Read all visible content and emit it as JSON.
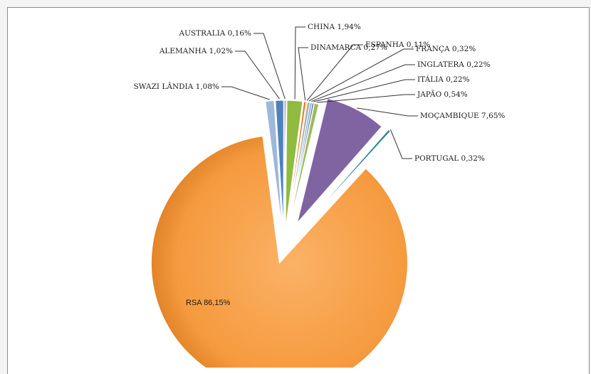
{
  "chart_data": {
    "type": "pie",
    "title": "",
    "unit": "%",
    "slices": [
      {
        "name": "SWAZI LÂNDIA",
        "value": 1.08,
        "label": "SWAZI LÂNDIA 1,08%",
        "color": "#9db8dc"
      },
      {
        "name": "ALEMANHA",
        "value": 1.02,
        "label": "ALEMANHA 1,02%",
        "color": "#4f81bd"
      },
      {
        "name": "AUSTRALIA",
        "value": 0.16,
        "label": "AUSTRALIA 0,16%",
        "color": "#1f3864"
      },
      {
        "name": "CHINA",
        "value": 1.94,
        "label": "CHINA 1,94%",
        "color": "#8fbb3f"
      },
      {
        "name": "DINAMARCA",
        "value": 0.27,
        "label": "DINAMARCA 0,27%",
        "color": "#e46c0a"
      },
      {
        "name": "ESPANHA",
        "value": 0.11,
        "label": "ESPANHA 0,11%",
        "color": "#c0504d"
      },
      {
        "name": "FRANÇA",
        "value": 0.32,
        "label": "FRANÇA 0,32%",
        "color": "#a9a9a9"
      },
      {
        "name": "INGLATERA",
        "value": 0.22,
        "label": "INGLATERA 0,22%",
        "color": "#4bacc6"
      },
      {
        "name": "ITÁLIA",
        "value": 0.22,
        "label": "ITÁLIA 0,22%",
        "color": "#8064a2"
      },
      {
        "name": "JAPÃO",
        "value": 0.54,
        "label": "JAPÃO 0,54%",
        "color": "#9bbb59"
      },
      {
        "name": "MOÇAMBIQUE",
        "value": 7.65,
        "label": "MOÇAMBIQUE 7,65%",
        "color": "#8064a2"
      },
      {
        "name": "PORTUGAL",
        "value": 0.32,
        "label": "PORTUGAL 0,32%",
        "color": "#31859c"
      },
      {
        "name": "RSA",
        "value": 86.15,
        "label": "RSA 86,15%",
        "color": "#f79646"
      }
    ],
    "legend": "none"
  }
}
